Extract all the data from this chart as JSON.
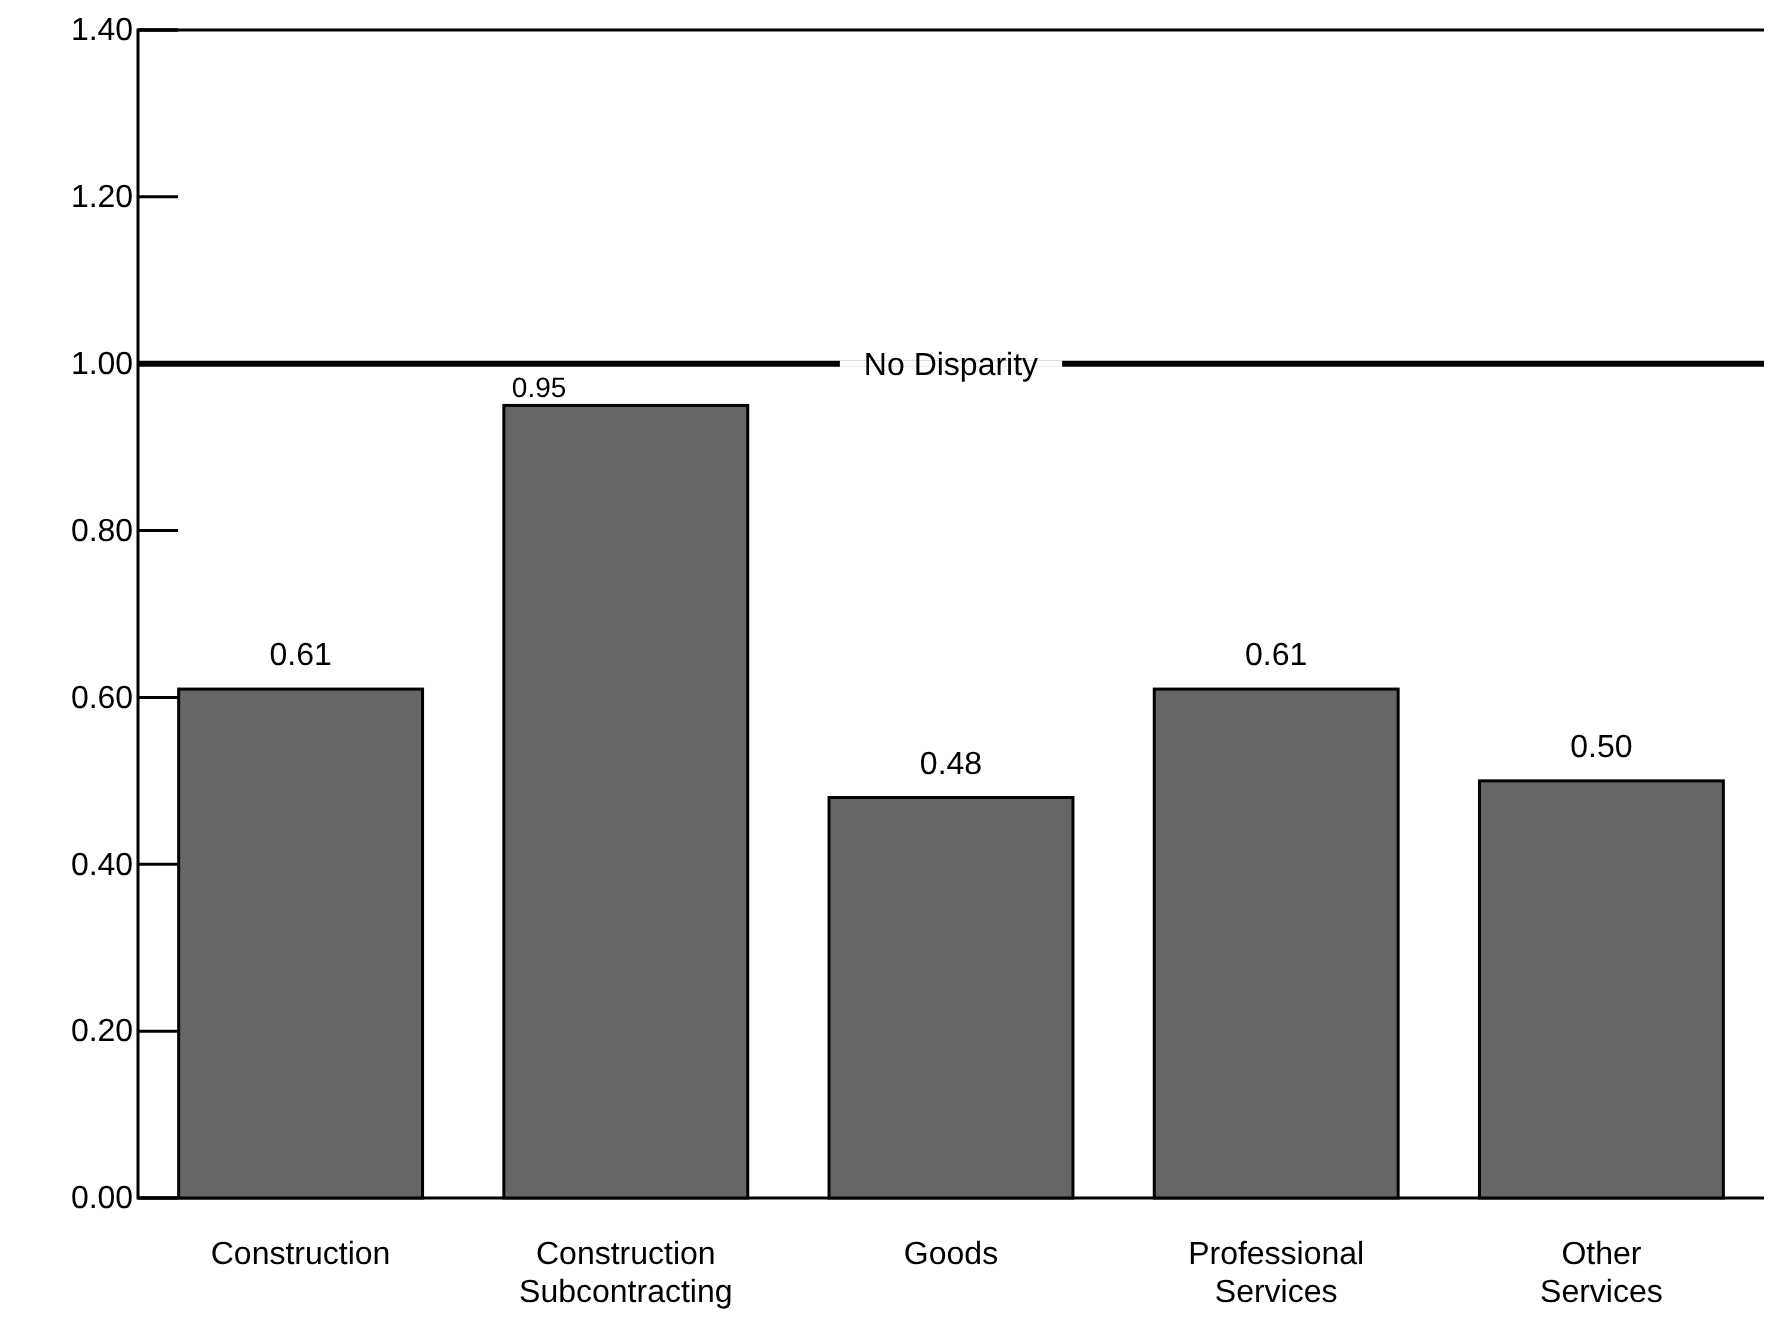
{
  "chart_data": {
    "type": "bar",
    "categories": [
      "Construction",
      "Construction Subcontracting",
      "Goods",
      "Professional Services",
      "Other Services"
    ],
    "values": [
      0.61,
      0.95,
      0.48,
      0.61,
      0.5
    ],
    "value_labels": [
      "0.61",
      "0.95",
      "0.48",
      "0.61",
      "0.50"
    ],
    "color": "#666666",
    "ylim": [
      0,
      1.4
    ],
    "yticks": [
      {
        "value": 0,
        "label": "0.00"
      },
      {
        "value": 0.2,
        "label": "0.20"
      },
      {
        "value": 0.4,
        "label": "0.40"
      },
      {
        "value": 0.6,
        "label": "0.60"
      },
      {
        "value": 0.8,
        "label": "0.80"
      },
      {
        "value": 1,
        "label": "1.00"
      },
      {
        "value": 1.2,
        "label": "1.20"
      },
      {
        "value": 1.4,
        "label": "1.40"
      }
    ],
    "ref_lines": [
      {
        "axis": "y",
        "value": 1,
        "label": "No Disparity",
        "color": "#000000"
      }
    ]
  }
}
